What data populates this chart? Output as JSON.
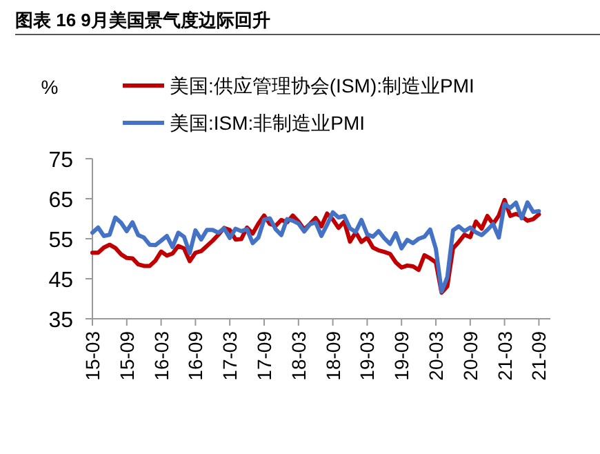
{
  "chart_data": {
    "type": "line",
    "title": "图表 16 9月美国景气度边际回升",
    "ylabel": "%",
    "legend": "top",
    "line_style": "solid",
    "marker": "none",
    "grid": false,
    "categories": [
      "15-03",
      null,
      null,
      null,
      null,
      null,
      "15-09",
      null,
      null,
      null,
      null,
      null,
      "16-03",
      null,
      null,
      null,
      null,
      null,
      "16-09",
      null,
      null,
      null,
      null,
      null,
      "17-03",
      null,
      null,
      null,
      null,
      null,
      "17-09",
      null,
      null,
      null,
      null,
      null,
      "18-03",
      null,
      null,
      null,
      null,
      null,
      "18-09",
      null,
      null,
      null,
      null,
      null,
      "19-03",
      null,
      null,
      null,
      null,
      null,
      "19-09",
      null,
      null,
      null,
      null,
      null,
      "20-03",
      null,
      null,
      null,
      null,
      null,
      "20-09",
      null,
      null,
      null,
      null,
      null,
      "21-03",
      null,
      null,
      null,
      null,
      null,
      "21-09"
    ],
    "series": [
      {
        "name": "美国:供应管理协会(ISM):制造业PMI",
        "color": "#c00000",
        "values": [
          51.5,
          51.5,
          52.8,
          53.5,
          52.7,
          51.1,
          50.2,
          50.1,
          48.6,
          48.2,
          48.2,
          49.5,
          51.8,
          50.8,
          51.3,
          53.2,
          52.6,
          49.4,
          51.5,
          51.9,
          53.2,
          54.5,
          56.0,
          57.7,
          57.2,
          54.8,
          54.9,
          57.8,
          56.3,
          58.8,
          60.8,
          58.7,
          58.2,
          59.7,
          59.1,
          60.8,
          59.3,
          57.3,
          58.7,
          60.2,
          58.1,
          61.3,
          59.8,
          57.7,
          59.3,
          54.3,
          56.6,
          54.2,
          55.3,
          52.8,
          52.1,
          51.7,
          51.2,
          49.1,
          47.8,
          48.3,
          48.1,
          47.2,
          50.9,
          50.1,
          49.1,
          41.5,
          43.1,
          52.6,
          54.2,
          56.0,
          55.4,
          59.3,
          57.5,
          60.7,
          58.7,
          60.8,
          64.7,
          60.7,
          61.2,
          60.6,
          59.5,
          59.9,
          61.1
        ]
      },
      {
        "name": "美国:ISM:非制造业PMI",
        "color": "#4472c4",
        "values": [
          56.5,
          57.8,
          55.7,
          56.0,
          60.3,
          59.0,
          56.9,
          59.1,
          55.9,
          55.3,
          53.5,
          53.4,
          54.5,
          55.7,
          52.9,
          56.5,
          55.5,
          51.4,
          57.1,
          54.8,
          57.2,
          57.2,
          56.5,
          57.6,
          55.2,
          57.5,
          56.9,
          57.4,
          53.9,
          55.3,
          59.8,
          60.1,
          57.4,
          55.9,
          59.9,
          59.5,
          58.8,
          56.8,
          58.6,
          59.1,
          55.7,
          58.5,
          61.6,
          60.3,
          60.7,
          57.6,
          56.7,
          59.7,
          56.1,
          55.5,
          56.9,
          55.1,
          53.7,
          56.4,
          52.6,
          54.7,
          53.9,
          55.0,
          55.5,
          57.3,
          52.5,
          41.8,
          45.4,
          57.1,
          58.1,
          56.9,
          57.8,
          56.6,
          55.9,
          57.2,
          58.7,
          55.3,
          63.7,
          62.7,
          64.0,
          60.1,
          64.1,
          61.7,
          61.9
        ]
      }
    ],
    "ylim": [
      35,
      75
    ],
    "yticks": [
      35,
      45,
      55,
      65,
      75
    ]
  }
}
